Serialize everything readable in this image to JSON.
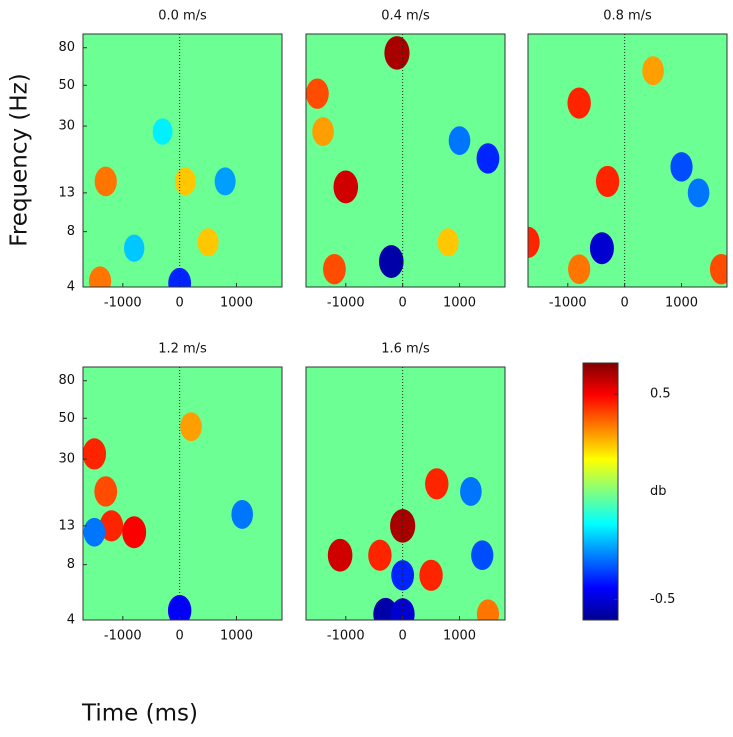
{
  "chart_data": [
    {
      "type": "heatmap",
      "title": "0.0 m/s",
      "xlim": [
        -1700,
        1800
      ],
      "ylim": [
        4,
        95
      ],
      "yscale": "log",
      "xticks": [
        -1000,
        0,
        1000
      ],
      "yticks": [
        4,
        8,
        13,
        30,
        50,
        80
      ],
      "x": [
        -1300,
        -1400,
        500,
        -800,
        800,
        0,
        -300,
        100
      ],
      "y": [
        15,
        4.3,
        7,
        6.5,
        15,
        4.2,
        28,
        15
      ],
      "values": [
        0.35,
        0.35,
        0.25,
        -0.2,
        -0.25,
        -0.4,
        -0.15,
        0.25
      ]
    },
    {
      "type": "heatmap",
      "title": "0.4 m/s",
      "xlim": [
        -1700,
        1800
      ],
      "ylim": [
        4,
        95
      ],
      "yscale": "log",
      "xticks": [
        -1000,
        0,
        1000
      ],
      "x": [
        -1000,
        -1500,
        -200,
        -1200,
        -1400,
        1500,
        -100,
        1000,
        800
      ],
      "y": [
        14,
        45,
        5.5,
        5,
        28,
        20,
        75,
        25,
        7
      ],
      "values": [
        0.55,
        0.4,
        -0.55,
        0.4,
        0.3,
        -0.4,
        0.6,
        -0.3,
        0.25
      ]
    },
    {
      "type": "heatmap",
      "title": "0.8 m/s",
      "xlim": [
        -1700,
        1800
      ],
      "ylim": [
        4,
        95
      ],
      "yscale": "log",
      "xticks": [
        -1000,
        0,
        1000
      ],
      "x": [
        -400,
        -800,
        -300,
        1700,
        -1700,
        1000,
        -800,
        1300,
        500
      ],
      "y": [
        6.5,
        5,
        15,
        5,
        7,
        18,
        40,
        13,
        60
      ],
      "values": [
        -0.5,
        0.35,
        0.45,
        0.4,
        0.45,
        -0.35,
        0.45,
        -0.3,
        0.3
      ]
    },
    {
      "type": "heatmap",
      "title": "1.2 m/s",
      "xlim": [
        -1700,
        1800
      ],
      "ylim": [
        4,
        95
      ],
      "yscale": "log",
      "xticks": [
        -1000,
        0,
        1000
      ],
      "yticks": [
        4,
        8,
        13,
        30,
        50,
        80
      ],
      "x": [
        -1300,
        -1200,
        -800,
        -1500,
        0,
        1100,
        -1500,
        200
      ],
      "y": [
        20,
        13,
        12,
        32,
        4.5,
        15,
        12,
        45
      ],
      "values": [
        0.4,
        0.45,
        0.5,
        0.45,
        -0.45,
        -0.3,
        -0.3,
        0.3
      ]
    },
    {
      "type": "heatmap",
      "title": "1.6 m/s",
      "xlim": [
        -1700,
        1800
      ],
      "ylim": [
        4,
        95
      ],
      "yscale": "log",
      "xticks": [
        -1000,
        0,
        1000
      ],
      "x": [
        0,
        -1100,
        500,
        -400,
        -300,
        0,
        600,
        1500,
        1400,
        0,
        1200
      ],
      "y": [
        13,
        9,
        7,
        9,
        4.3,
        4.3,
        22,
        4.3,
        9,
        7,
        20
      ],
      "values": [
        0.6,
        0.55,
        0.45,
        0.45,
        -0.55,
        -0.5,
        0.45,
        0.35,
        -0.35,
        -0.4,
        -0.3
      ]
    }
  ],
  "ylabel": "Frequency (Hz)",
  "xlabel": "Time (ms)",
  "colorbar": {
    "clim": [
      -0.6,
      0.65
    ],
    "ticks": [
      0.5,
      -0.5
    ],
    "label": "db"
  }
}
